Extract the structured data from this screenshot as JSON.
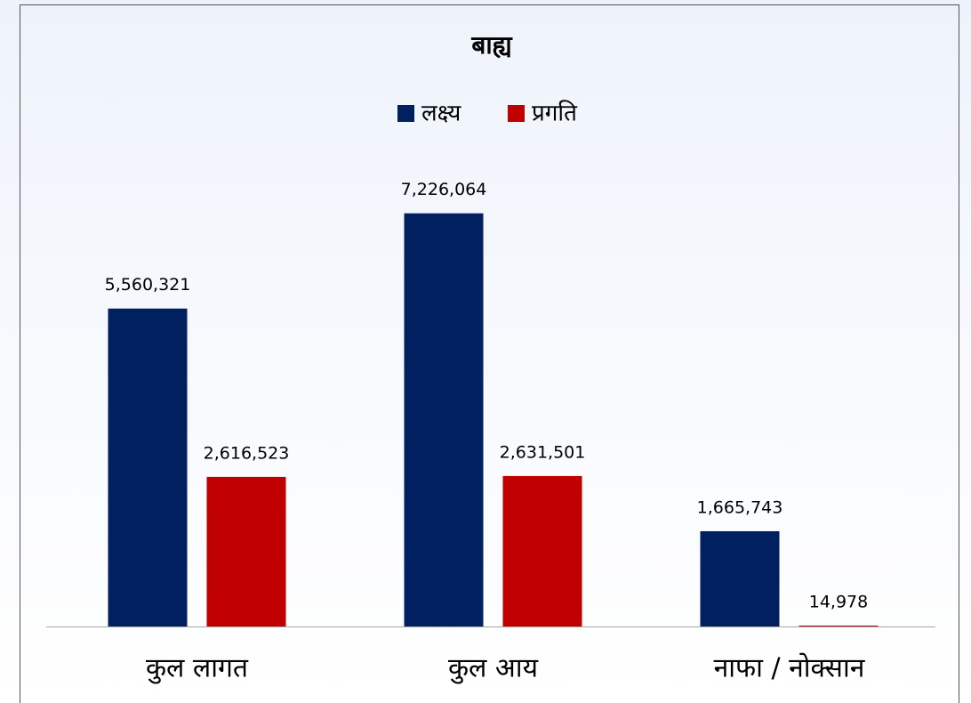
{
  "chart_data": {
    "type": "bar",
    "title": "बाह्य",
    "categories": [
      "कुल लागत",
      "कुल आय",
      "नाफा / नोक्सान"
    ],
    "series": [
      {
        "name": "लक्ष्य",
        "color": "#002060",
        "values": [
          5560321,
          7226064,
          1665743
        ],
        "value_labels": [
          "5,560,321",
          "7,226,064",
          "1,665,743"
        ]
      },
      {
        "name": "प्रगति",
        "color": "#c00000",
        "values": [
          2616523,
          2631501,
          14978
        ],
        "value_labels": [
          "2,616,523",
          "2,631,501",
          "14,978"
        ]
      }
    ],
    "ylim": [
      0,
      8000000
    ],
    "legend": "top"
  }
}
